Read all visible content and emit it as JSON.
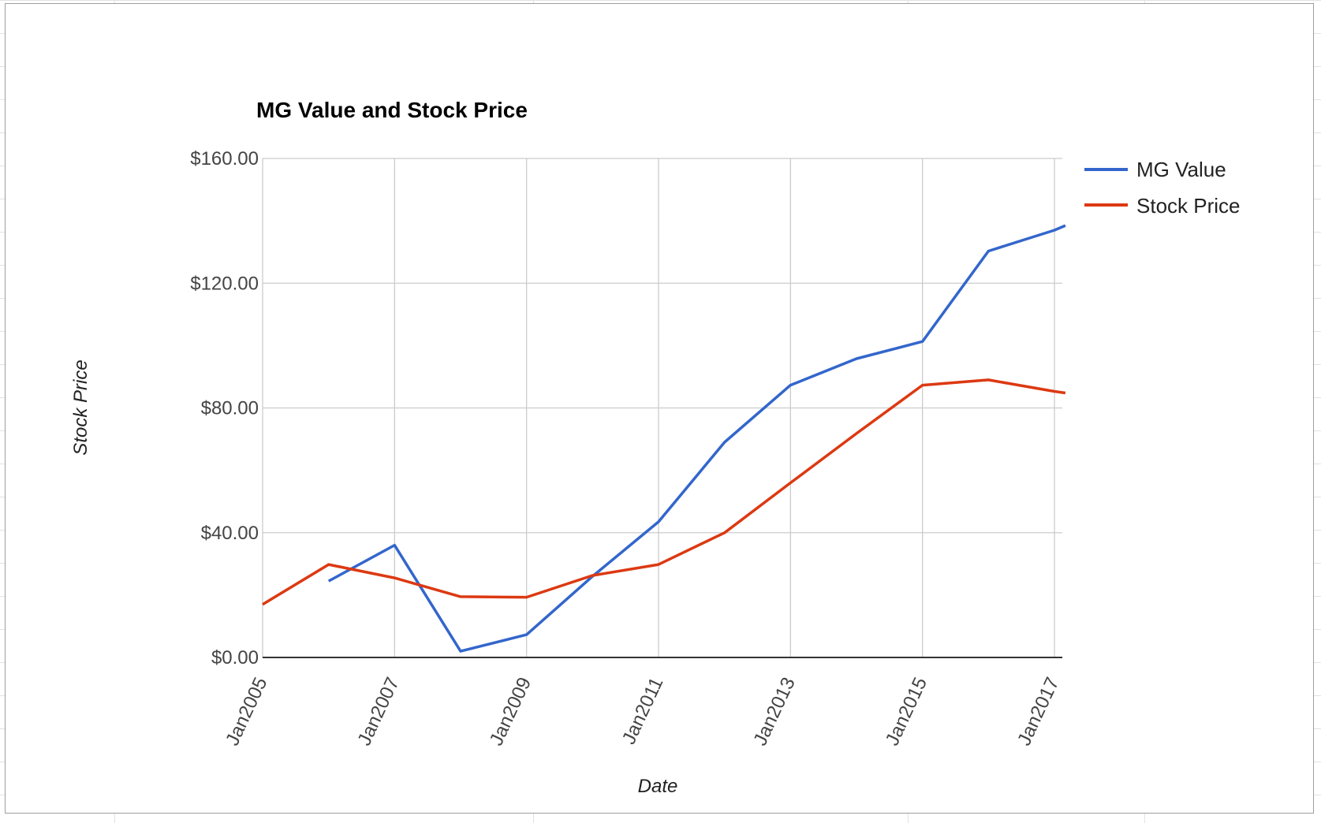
{
  "chart_data": {
    "type": "line",
    "title": "MG Value and Stock Price",
    "xlabel": "Date",
    "ylabel": "Stock Price",
    "x": [
      "2005-01",
      "2006-01",
      "2007-01",
      "2008-01",
      "2009-01",
      "2010-01",
      "2011-01",
      "2012-01",
      "2013-01",
      "2014-01",
      "2015-01",
      "2016-01",
      "2017-01",
      "2017-03"
    ],
    "x_tick_labels": [
      "Jan2005",
      "Jan2007",
      "Jan2009",
      "Jan2011",
      "Jan2013",
      "Jan2015",
      "Jan2017"
    ],
    "y_tick_labels": [
      "$0.00",
      "$40.00",
      "$80.00",
      "$120.00",
      "$160.00"
    ],
    "y_ticks": [
      0,
      40,
      80,
      120,
      160
    ],
    "ylim": [
      0,
      160
    ],
    "grid": true,
    "legend_position": "right",
    "series": [
      {
        "name": "MG Value",
        "color": "#3366cc",
        "values": [
          null,
          24.5,
          36.0,
          2.0,
          7.3,
          26.0,
          43.5,
          69.0,
          87.3,
          95.8,
          101.3,
          130.3,
          137.0,
          138.5
        ]
      },
      {
        "name": "Stock Price",
        "color": "#dc3912",
        "values": [
          17.0,
          29.8,
          25.5,
          19.5,
          19.3,
          26.3,
          29.8,
          40.0,
          56.0,
          71.8,
          87.3,
          89.0,
          85.3,
          84.8
        ]
      }
    ]
  }
}
